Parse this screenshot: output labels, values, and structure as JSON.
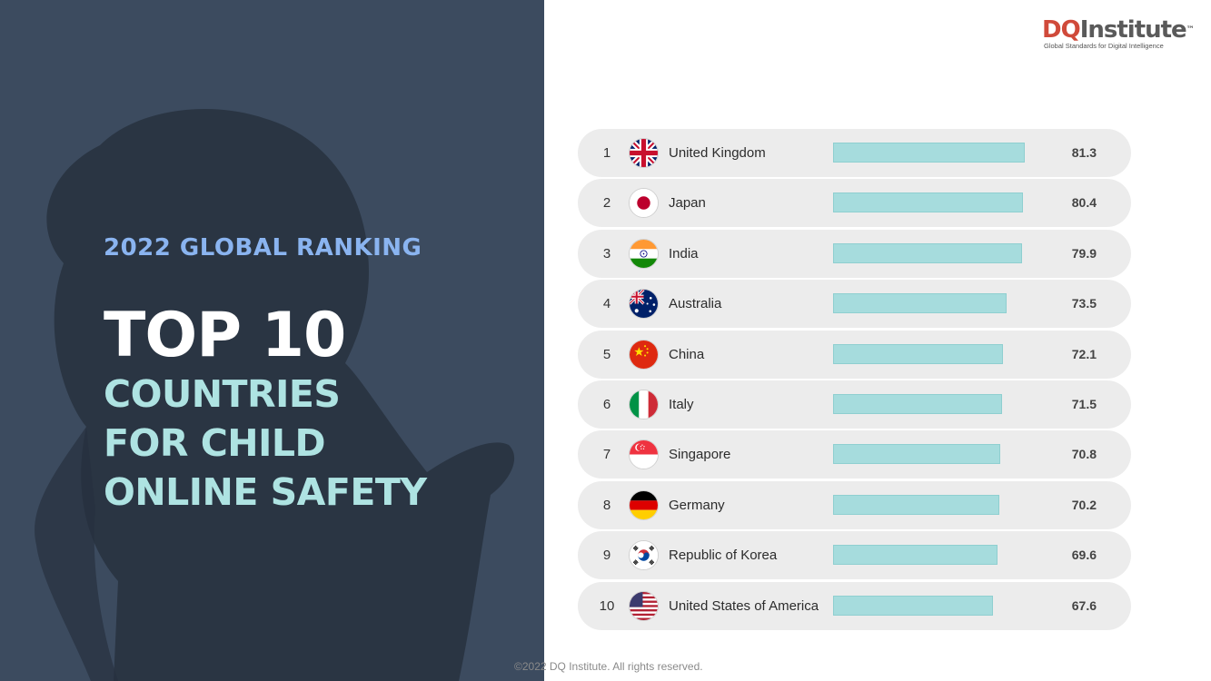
{
  "header": {
    "kicker": "2022 GLOBAL RANKING",
    "title": "TOP 10",
    "subtitle_lines": [
      "COUNTRIES",
      "FOR CHILD",
      "ONLINE SAFETY"
    ]
  },
  "logo": {
    "dq": "DQ",
    "institute": "Institute",
    "tm": "™",
    "tagline": "Global Standards for Digital Intelligence"
  },
  "footer": {
    "copyright": "©2022 DQ Institute. All rights reserved."
  },
  "colors": {
    "panel_bg": "#3c4b5f",
    "kicker": "#8ab4f0",
    "accent": "#aee3e2",
    "bar": "#a6dcdd",
    "row_bg": "#ececec",
    "logo_red": "#d04a3a"
  },
  "chart_data": {
    "type": "bar",
    "orientation": "horizontal",
    "title": "",
    "xlabel": "",
    "ylabel": "",
    "xlim": [
      0,
      100
    ],
    "categories": [
      "United Kingdom",
      "Japan",
      "India",
      "Australia",
      "China",
      "Italy",
      "Singapore",
      "Germany",
      "Republic of Korea",
      "United States of America"
    ],
    "ranks": [
      "1",
      "2",
      "3",
      "4",
      "5",
      "6",
      "7",
      "8",
      "9",
      "10"
    ],
    "values": [
      81.3,
      80.4,
      79.9,
      73.5,
      72.1,
      71.5,
      70.8,
      70.2,
      69.6,
      67.6
    ],
    "value_labels": [
      "81.3",
      "80.4",
      "79.9",
      "73.5",
      "72.1",
      "71.5",
      "70.8",
      "70.2",
      "69.6",
      "67.6"
    ],
    "flag_icons": [
      "uk-flag-icon",
      "japan-flag-icon",
      "india-flag-icon",
      "australia-flag-icon",
      "china-flag-icon",
      "italy-flag-icon",
      "singapore-flag-icon",
      "germany-flag-icon",
      "korea-flag-icon",
      "usa-flag-icon"
    ]
  }
}
